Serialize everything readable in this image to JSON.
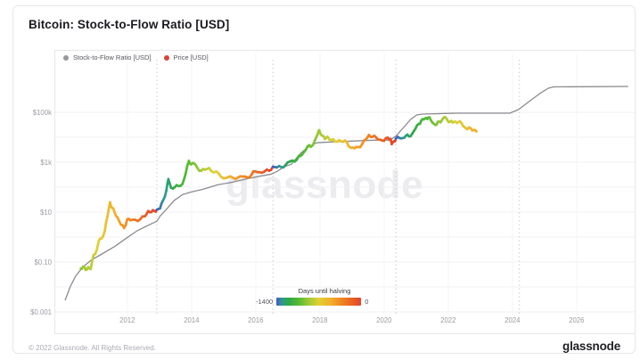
{
  "header": {
    "title": "Bitcoin: Stock-to-Flow Ratio [USD]"
  },
  "legend": {
    "items": [
      {
        "label": "Stock-to-Flow Ratio [USD]",
        "color": "#97979d"
      },
      {
        "label": "Price [USD]",
        "color": "#d6453f"
      }
    ]
  },
  "watermark": "glassnode",
  "halving_legend": {
    "title": "Days until halving",
    "min_label": "-1400",
    "max_label": "0"
  },
  "footer": {
    "copyright": "© 2022 Glassnode. All Rights Reserved.",
    "logo": "glassnode"
  },
  "chart_data": {
    "type": "line",
    "title": "Bitcoin: Stock-to-Flow Ratio [USD]",
    "x_axis": {
      "ticks": [
        2012,
        2014,
        2016,
        2018,
        2020,
        2022,
        2024,
        2026
      ],
      "range": [
        2009.7,
        2027.8
      ]
    },
    "y_axis": {
      "scale": "log",
      "unit": "USD",
      "range": [
        0.001,
        3000000
      ],
      "ticks": [
        {
          "label": "$100k",
          "value": 100000
        },
        {
          "label": "$1k",
          "value": 1000
        },
        {
          "label": "$10",
          "value": 10
        },
        {
          "label": "$0.10",
          "value": 0.1
        },
        {
          "label": "$0.001",
          "value": 0.001
        }
      ],
      "grid_decades": [
        -3,
        -2,
        -1,
        0,
        1,
        2,
        3,
        4,
        5
      ]
    },
    "halvings": {
      "label": "Days until halving",
      "dates": [
        2012.92,
        2016.54,
        2020.37,
        2024.22
      ],
      "legend_min": -1400,
      "legend_max": 0
    },
    "series": [
      {
        "name": "Stock-to-Flow Ratio [USD]",
        "color": "#8b8b90",
        "points": [
          [
            2010.06,
            0.0029
          ],
          [
            2010.22,
            0.01
          ],
          [
            2010.39,
            0.027
          ],
          [
            2010.61,
            0.062
          ],
          [
            2010.88,
            0.12
          ],
          [
            2011.21,
            0.21
          ],
          [
            2011.6,
            0.41
          ],
          [
            2011.95,
            0.86
          ],
          [
            2012.31,
            1.8
          ],
          [
            2012.64,
            2.9
          ],
          [
            2012.92,
            4.3
          ],
          [
            2013.03,
            7.1
          ],
          [
            2013.23,
            13.5
          ],
          [
            2013.45,
            28.5
          ],
          [
            2013.72,
            50
          ],
          [
            2014.0,
            64
          ],
          [
            2014.36,
            82
          ],
          [
            2014.82,
            124
          ],
          [
            2015.29,
            158
          ],
          [
            2015.76,
            220
          ],
          [
            2016.2,
            285
          ],
          [
            2016.5,
            335
          ],
          [
            2016.67,
            430
          ],
          [
            2016.89,
            650
          ],
          [
            2017.11,
            830
          ],
          [
            2017.39,
            2200
          ],
          [
            2017.66,
            4300
          ],
          [
            2017.91,
            6000
          ],
          [
            2018.4,
            6500
          ],
          [
            2019.09,
            7100
          ],
          [
            2019.78,
            7700
          ],
          [
            2020.19,
            7700
          ],
          [
            2020.39,
            11700
          ],
          [
            2020.61,
            24700
          ],
          [
            2020.83,
            51800
          ],
          [
            2021.02,
            78000
          ],
          [
            2021.21,
            85000
          ],
          [
            2022.26,
            92000
          ],
          [
            2023.92,
            92000
          ],
          [
            2024.19,
            128000
          ],
          [
            2024.52,
            268000
          ],
          [
            2024.85,
            560000
          ],
          [
            2025.12,
            920000
          ],
          [
            2025.29,
            1040000
          ],
          [
            2027.61,
            1090000
          ]
        ]
      },
      {
        "name": "Price [USD]",
        "color": "halving-gradient",
        "points": [
          [
            2010.55,
            0.055
          ],
          [
            2010.62,
            0.065
          ],
          [
            2010.7,
            0.048
          ],
          [
            2010.78,
            0.062
          ],
          [
            2010.86,
            0.052
          ],
          [
            2010.95,
            0.19
          ],
          [
            2011.05,
            0.3
          ],
          [
            2011.12,
            0.75
          ],
          [
            2011.2,
            0.88
          ],
          [
            2011.3,
            1.8
          ],
          [
            2011.38,
            6.5
          ],
          [
            2011.46,
            25
          ],
          [
            2011.52,
            15
          ],
          [
            2011.6,
            10
          ],
          [
            2011.7,
            6
          ],
          [
            2011.8,
            3.1
          ],
          [
            2011.9,
            2.3
          ],
          [
            2012.0,
            5.2
          ],
          [
            2012.1,
            4.7
          ],
          [
            2012.25,
            4.9
          ],
          [
            2012.4,
            5.1
          ],
          [
            2012.55,
            6.8
          ],
          [
            2012.65,
            11
          ],
          [
            2012.75,
            10
          ],
          [
            2012.85,
            11
          ],
          [
            2012.92,
            12.4
          ],
          [
            2013.02,
            14
          ],
          [
            2013.12,
            30
          ],
          [
            2013.22,
            75
          ],
          [
            2013.28,
            210
          ],
          [
            2013.36,
            95
          ],
          [
            2013.48,
            100
          ],
          [
            2013.6,
            110
          ],
          [
            2013.72,
            135
          ],
          [
            2013.82,
            350
          ],
          [
            2013.92,
            1130
          ],
          [
            2014.0,
            820
          ],
          [
            2014.06,
            930
          ],
          [
            2014.18,
            600
          ],
          [
            2014.3,
            450
          ],
          [
            2014.42,
            500
          ],
          [
            2014.55,
            580
          ],
          [
            2014.7,
            390
          ],
          [
            2014.85,
            350
          ],
          [
            2015.0,
            225
          ],
          [
            2015.12,
            245
          ],
          [
            2015.3,
            235
          ],
          [
            2015.45,
            245
          ],
          [
            2015.6,
            265
          ],
          [
            2015.75,
            240
          ],
          [
            2015.88,
            330
          ],
          [
            2015.98,
            430
          ],
          [
            2016.12,
            395
          ],
          [
            2016.28,
            425
          ],
          [
            2016.42,
            455
          ],
          [
            2016.54,
            660
          ],
          [
            2016.66,
            615
          ],
          [
            2016.8,
            640
          ],
          [
            2016.94,
            790
          ],
          [
            2017.06,
            1050
          ],
          [
            2017.16,
            1150
          ],
          [
            2017.28,
            1250
          ],
          [
            2017.4,
            1800
          ],
          [
            2017.5,
            2500
          ],
          [
            2017.62,
            4300
          ],
          [
            2017.72,
            4100
          ],
          [
            2017.84,
            7000
          ],
          [
            2017.93,
            13000
          ],
          [
            2017.98,
            19200
          ],
          [
            2018.08,
            11500
          ],
          [
            2018.16,
            8500
          ],
          [
            2018.24,
            10500
          ],
          [
            2018.36,
            7800
          ],
          [
            2018.48,
            6700
          ],
          [
            2018.6,
            7600
          ],
          [
            2018.72,
            6600
          ],
          [
            2018.84,
            6400
          ],
          [
            2018.96,
            3800
          ],
          [
            2019.08,
            3600
          ],
          [
            2019.2,
            4000
          ],
          [
            2019.32,
            5300
          ],
          [
            2019.44,
            8200
          ],
          [
            2019.53,
            12300
          ],
          [
            2019.64,
            10300
          ],
          [
            2019.76,
            9600
          ],
          [
            2019.88,
            8000
          ],
          [
            2020.0,
            7200
          ],
          [
            2020.12,
            9600
          ],
          [
            2020.2,
            8600
          ],
          [
            2020.24,
            5300
          ],
          [
            2020.32,
            6900
          ],
          [
            2020.37,
            8800
          ],
          [
            2020.48,
            9400
          ],
          [
            2020.58,
            9300
          ],
          [
            2020.68,
            11400
          ],
          [
            2020.78,
            10800
          ],
          [
            2020.88,
            14000
          ],
          [
            2020.98,
            22000
          ],
          [
            2021.08,
            34000
          ],
          [
            2021.16,
            46000
          ],
          [
            2021.24,
            52000
          ],
          [
            2021.32,
            59000
          ],
          [
            2021.38,
            62000
          ],
          [
            2021.46,
            48000
          ],
          [
            2021.56,
            34000
          ],
          [
            2021.64,
            32000
          ],
          [
            2021.72,
            42000
          ],
          [
            2021.8,
            47000
          ],
          [
            2021.88,
            64000
          ],
          [
            2021.96,
            52000
          ],
          [
            2022.06,
            42000
          ],
          [
            2022.14,
            39000
          ],
          [
            2022.22,
            43000
          ],
          [
            2022.32,
            40000
          ],
          [
            2022.42,
            36000
          ],
          [
            2022.52,
            25000
          ],
          [
            2022.6,
            21000
          ],
          [
            2022.7,
            23000
          ],
          [
            2022.8,
            19800
          ],
          [
            2022.88,
            17000
          ]
        ]
      }
    ]
  }
}
